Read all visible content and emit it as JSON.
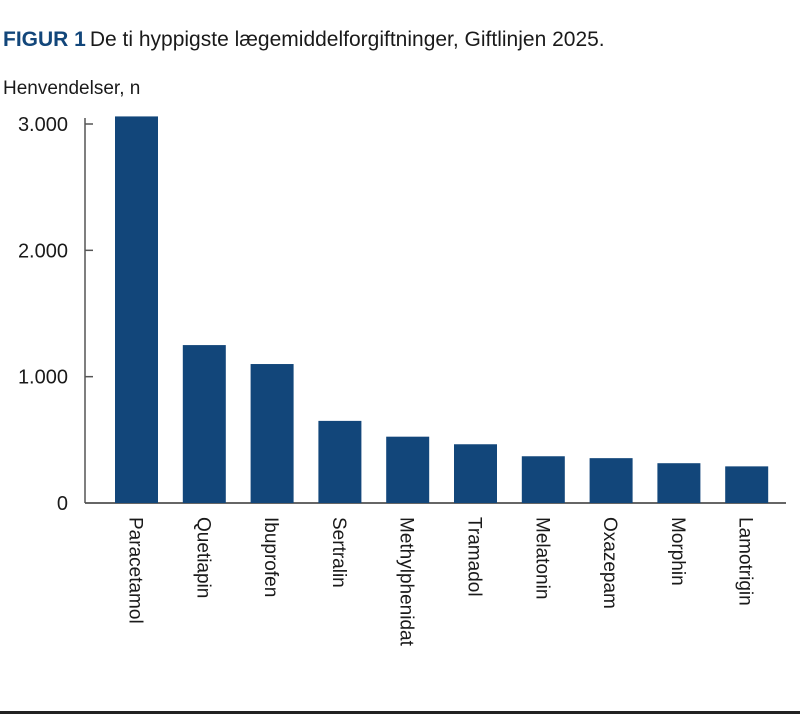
{
  "figure_label": "FIGUR 1",
  "chart_data": {
    "type": "bar",
    "title": "De ti hyppigste lægemiddelforgiftninger, Giftlinjen 2025.",
    "xlabel": "",
    "ylabel": "Henvendelser, n",
    "ylim": [
      0,
      3000
    ],
    "yticks": [
      0,
      1000,
      2000,
      3000
    ],
    "ytick_labels": [
      "0",
      "1.000",
      "2.000",
      "3.000"
    ],
    "grid": false,
    "categories": [
      "Paracetamol",
      "Quetiapin",
      "Ibuprofen",
      "Sertralin",
      "Methylphenidat",
      "Tramadol",
      "Melatonin",
      "Oxazepam",
      "Morphin",
      "Lamotrigin"
    ],
    "values": [
      3060,
      1250,
      1100,
      650,
      525,
      465,
      370,
      355,
      315,
      290
    ],
    "bar_color": "#12467a"
  }
}
